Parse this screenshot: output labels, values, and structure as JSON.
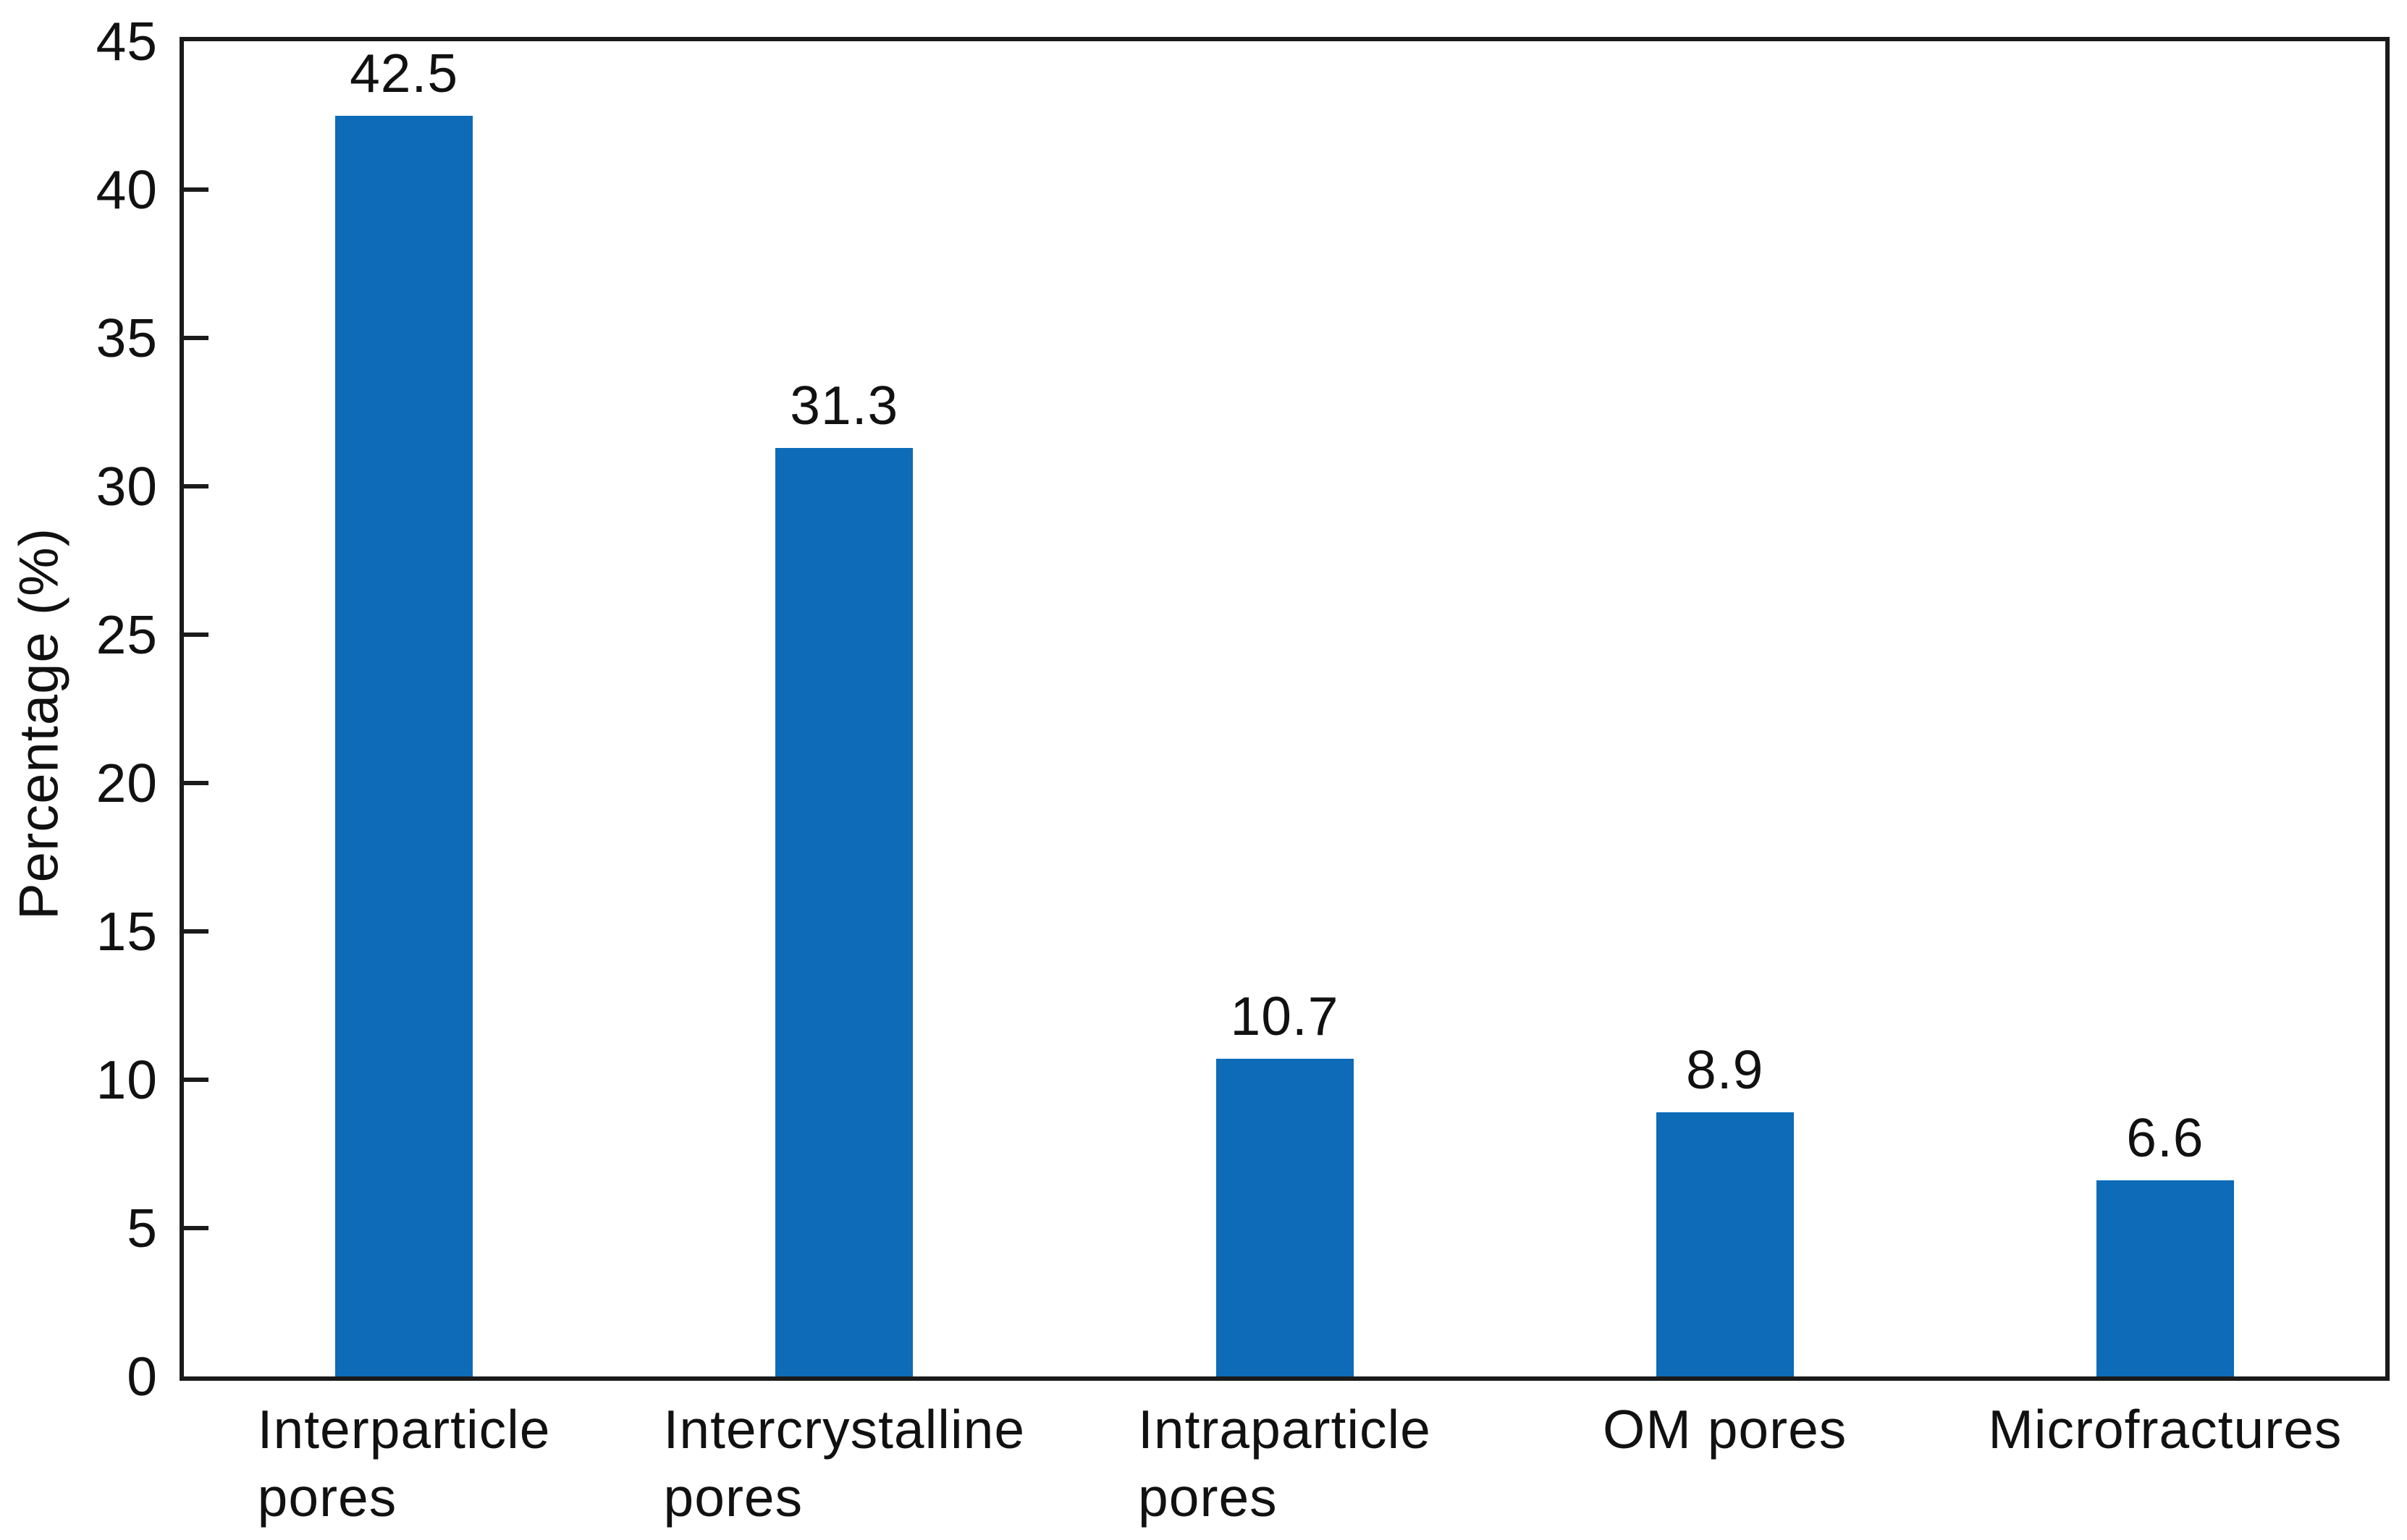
{
  "figure": {
    "background": "#ffffff"
  },
  "chart_data": {
    "type": "bar",
    "title": "",
    "xlabel": "",
    "ylabel": "Percentage (%)",
    "ylim": [
      0,
      45
    ],
    "y_ticks": [
      0,
      5,
      10,
      15,
      20,
      25,
      30,
      35,
      40,
      45
    ],
    "grid": false,
    "legend": "none",
    "frame": "full-box",
    "tick_direction": "in",
    "bar_color": "#0d6bb8",
    "axis_color": "#1a1a1a",
    "text_color": "#111111",
    "categories": [
      {
        "label": "Interparticle pores",
        "lines": [
          "Interparticle",
          "pores"
        ]
      },
      {
        "label": "Intercrystalline pores",
        "lines": [
          "Intercrystalline",
          "pores"
        ]
      },
      {
        "label": "Intraparticle pores",
        "lines": [
          "Intraparticle",
          "pores"
        ]
      },
      {
        "label": "OM pores",
        "lines": [
          "OM pores"
        ]
      },
      {
        "label": "Microfractures",
        "lines": [
          "Microfractures"
        ]
      }
    ],
    "values": [
      42.5,
      31.3,
      10.7,
      8.9,
      6.6
    ],
    "value_labels": [
      "42.5",
      "31.3",
      "10.7",
      "8.9",
      "6.6"
    ]
  }
}
